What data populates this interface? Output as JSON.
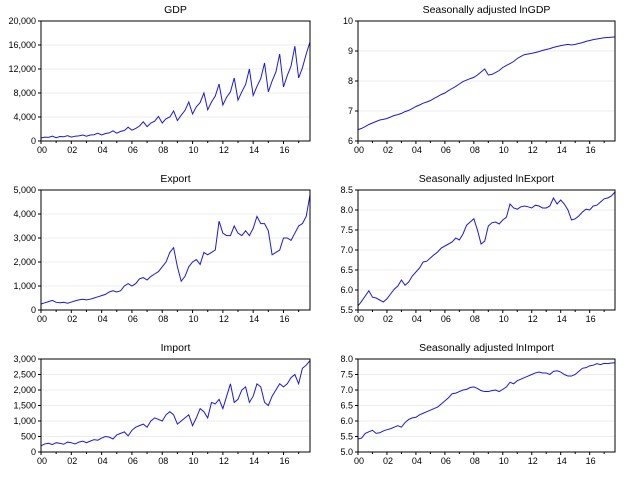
{
  "figure": {
    "line_color": "#1a1adb",
    "background": "#ffffff"
  },
  "chart_data": [
    {
      "type": "line",
      "title": "GDP",
      "x_tick_labels": [
        "00",
        "02",
        "04",
        "06",
        "08",
        "10",
        "12",
        "14",
        "16"
      ],
      "x_range": [
        2000,
        2017.75
      ],
      "ylim": [
        0,
        20000
      ],
      "y_ticks": [
        0,
        4000,
        8000,
        12000,
        16000,
        20000
      ],
      "y_tick_labels": [
        "0",
        "4,000",
        "8,000",
        "12,000",
        "16,000",
        "20,000"
      ],
      "grid": true,
      "x": [
        2000.0,
        2000.25,
        2000.5,
        2000.75,
        2001.0,
        2001.25,
        2001.5,
        2001.75,
        2002.0,
        2002.25,
        2002.5,
        2002.75,
        2003.0,
        2003.25,
        2003.5,
        2003.75,
        2004.0,
        2004.25,
        2004.5,
        2004.75,
        2005.0,
        2005.25,
        2005.5,
        2005.75,
        2006.0,
        2006.25,
        2006.5,
        2006.75,
        2007.0,
        2007.25,
        2007.5,
        2007.75,
        2008.0,
        2008.25,
        2008.5,
        2008.75,
        2009.0,
        2009.25,
        2009.5,
        2009.75,
        2010.0,
        2010.25,
        2010.5,
        2010.75,
        2011.0,
        2011.25,
        2011.5,
        2011.75,
        2012.0,
        2012.25,
        2012.5,
        2012.75,
        2013.0,
        2013.25,
        2013.5,
        2013.75,
        2014.0,
        2014.25,
        2014.5,
        2014.75,
        2015.0,
        2015.25,
        2015.5,
        2015.75,
        2016.0,
        2016.25,
        2016.5,
        2016.75,
        2017.0,
        2017.25,
        2017.5,
        2017.75
      ],
      "values": [
        500,
        650,
        600,
        800,
        550,
        750,
        700,
        900,
        650,
        800,
        850,
        1000,
        800,
        1000,
        1050,
        1300,
        1000,
        1250,
        1350,
        1700,
        1300,
        1600,
        1750,
        2300,
        1800,
        2100,
        2500,
        3200,
        2400,
        3000,
        3300,
        4100,
        3000,
        3700,
        4000,
        5000,
        3400,
        4300,
        5100,
        6500,
        4500,
        5700,
        6400,
        8000,
        5200,
        6500,
        7500,
        9500,
        6000,
        7300,
        8200,
        10500,
        6800,
        8200,
        9400,
        12000,
        7600,
        9100,
        10400,
        13000,
        8200,
        10000,
        11500,
        14500,
        9000,
        10900,
        12500,
        15800,
        10500,
        12200,
        14500,
        16500
      ],
      "line_color": "#1a1adb"
    },
    {
      "type": "line",
      "title": "Seasonally adjusted lnGDP",
      "x_tick_labels": [
        "00",
        "02",
        "04",
        "06",
        "08",
        "10",
        "12",
        "14",
        "16"
      ],
      "x_range": [
        2000,
        2017.75
      ],
      "ylim": [
        6,
        10
      ],
      "y_ticks": [
        6,
        7,
        8,
        9,
        10
      ],
      "y_tick_labels": [
        "6",
        "7",
        "8",
        "9",
        "10"
      ],
      "grid": true,
      "x": [
        2000.0,
        2000.25,
        2000.5,
        2000.75,
        2001.0,
        2001.25,
        2001.5,
        2001.75,
        2002.0,
        2002.25,
        2002.5,
        2002.75,
        2003.0,
        2003.25,
        2003.5,
        2003.75,
        2004.0,
        2004.25,
        2004.5,
        2004.75,
        2005.0,
        2005.25,
        2005.5,
        2005.75,
        2006.0,
        2006.25,
        2006.5,
        2006.75,
        2007.0,
        2007.25,
        2007.5,
        2007.75,
        2008.0,
        2008.25,
        2008.5,
        2008.75,
        2009.0,
        2009.25,
        2009.5,
        2009.75,
        2010.0,
        2010.25,
        2010.5,
        2010.75,
        2011.0,
        2011.25,
        2011.5,
        2011.75,
        2012.0,
        2012.25,
        2012.5,
        2012.75,
        2013.0,
        2013.25,
        2013.5,
        2013.75,
        2014.0,
        2014.25,
        2014.5,
        2014.75,
        2015.0,
        2015.25,
        2015.5,
        2015.75,
        2016.0,
        2016.25,
        2016.5,
        2016.75,
        2017.0,
        2017.25,
        2017.5,
        2017.75
      ],
      "values": [
        6.38,
        6.42,
        6.48,
        6.55,
        6.6,
        6.65,
        6.7,
        6.72,
        6.75,
        6.8,
        6.85,
        6.88,
        6.92,
        6.98,
        7.02,
        7.08,
        7.15,
        7.2,
        7.26,
        7.3,
        7.35,
        7.42,
        7.48,
        7.55,
        7.6,
        7.68,
        7.75,
        7.82,
        7.9,
        7.98,
        8.03,
        8.08,
        8.12,
        8.2,
        8.3,
        8.4,
        8.2,
        8.22,
        8.28,
        8.35,
        8.45,
        8.52,
        8.58,
        8.65,
        8.75,
        8.82,
        8.88,
        8.9,
        8.92,
        8.95,
        8.98,
        9.02,
        9.05,
        9.08,
        9.12,
        9.15,
        9.18,
        9.2,
        9.22,
        9.2,
        9.22,
        9.25,
        9.28,
        9.32,
        9.35,
        9.38,
        9.4,
        9.42,
        9.44,
        9.45,
        9.46,
        9.47
      ],
      "line_color": "#1a1adb"
    },
    {
      "type": "line",
      "title": "Export",
      "x_tick_labels": [
        "00",
        "02",
        "04",
        "06",
        "08",
        "10",
        "12",
        "14",
        "16"
      ],
      "x_range": [
        2000,
        2017.75
      ],
      "ylim": [
        0,
        5000
      ],
      "y_ticks": [
        0,
        1000,
        2000,
        3000,
        4000,
        5000
      ],
      "y_tick_labels": [
        "0",
        "1,000",
        "2,000",
        "3,000",
        "4,000",
        "5,000"
      ],
      "grid": true,
      "x": [
        2000.0,
        2000.25,
        2000.5,
        2000.75,
        2001.0,
        2001.25,
        2001.5,
        2001.75,
        2002.0,
        2002.25,
        2002.5,
        2002.75,
        2003.0,
        2003.25,
        2003.5,
        2003.75,
        2004.0,
        2004.25,
        2004.5,
        2004.75,
        2005.0,
        2005.25,
        2005.5,
        2005.75,
        2006.0,
        2006.25,
        2006.5,
        2006.75,
        2007.0,
        2007.25,
        2007.5,
        2007.75,
        2008.0,
        2008.25,
        2008.5,
        2008.75,
        2009.0,
        2009.25,
        2009.5,
        2009.75,
        2010.0,
        2010.25,
        2010.5,
        2010.75,
        2011.0,
        2011.25,
        2011.5,
        2011.75,
        2012.0,
        2012.25,
        2012.5,
        2012.75,
        2013.0,
        2013.25,
        2013.5,
        2013.75,
        2014.0,
        2014.25,
        2014.5,
        2014.75,
        2015.0,
        2015.25,
        2015.5,
        2015.75,
        2016.0,
        2016.25,
        2016.5,
        2016.75,
        2017.0,
        2017.25,
        2017.5,
        2017.75
      ],
      "values": [
        250,
        300,
        350,
        400,
        320,
        300,
        320,
        280,
        330,
        380,
        420,
        450,
        420,
        450,
        500,
        550,
        600,
        650,
        750,
        800,
        750,
        800,
        1000,
        1100,
        1000,
        1100,
        1300,
        1350,
        1250,
        1400,
        1500,
        1600,
        1800,
        2000,
        2400,
        2600,
        1800,
        1200,
        1400,
        1800,
        2000,
        2100,
        1900,
        2400,
        2300,
        2400,
        2500,
        3700,
        3200,
        3100,
        3100,
        3500,
        3200,
        3100,
        3300,
        3100,
        3400,
        3900,
        3600,
        3600,
        3300,
        2300,
        2400,
        2500,
        3000,
        3000,
        2900,
        3200,
        3500,
        3600,
        3900,
        4800
      ],
      "line_color": "#1a1adb"
    },
    {
      "type": "line",
      "title": "Seasonally adjusted lnExport",
      "x_tick_labels": [
        "00",
        "02",
        "04",
        "06",
        "08",
        "10",
        "12",
        "14",
        "16"
      ],
      "x_range": [
        2000,
        2017.75
      ],
      "ylim": [
        5.5,
        8.5
      ],
      "y_ticks": [
        5.5,
        6.0,
        6.5,
        7.0,
        7.5,
        8.0,
        8.5
      ],
      "y_tick_labels": [
        "5.5",
        "6.0",
        "6.5",
        "7.0",
        "7.5",
        "8.0",
        "8.5"
      ],
      "grid": true,
      "x": [
        2000.0,
        2000.25,
        2000.5,
        2000.75,
        2001.0,
        2001.25,
        2001.5,
        2001.75,
        2002.0,
        2002.25,
        2002.5,
        2002.75,
        2003.0,
        2003.25,
        2003.5,
        2003.75,
        2004.0,
        2004.25,
        2004.5,
        2004.75,
        2005.0,
        2005.25,
        2005.5,
        2005.75,
        2006.0,
        2006.25,
        2006.5,
        2006.75,
        2007.0,
        2007.25,
        2007.5,
        2007.75,
        2008.0,
        2008.25,
        2008.5,
        2008.75,
        2009.0,
        2009.25,
        2009.5,
        2009.75,
        2010.0,
        2010.25,
        2010.5,
        2010.75,
        2011.0,
        2011.25,
        2011.5,
        2011.75,
        2012.0,
        2012.25,
        2012.5,
        2012.75,
        2013.0,
        2013.25,
        2013.5,
        2013.75,
        2014.0,
        2014.25,
        2014.5,
        2014.75,
        2015.0,
        2015.25,
        2015.5,
        2015.75,
        2016.0,
        2016.25,
        2016.5,
        2016.75,
        2017.0,
        2017.25,
        2017.5,
        2017.75
      ],
      "values": [
        5.6,
        5.72,
        5.85,
        5.98,
        5.82,
        5.8,
        5.75,
        5.7,
        5.78,
        5.9,
        6.02,
        6.1,
        6.25,
        6.12,
        6.2,
        6.35,
        6.45,
        6.55,
        6.7,
        6.72,
        6.8,
        6.88,
        6.95,
        7.05,
        7.1,
        7.15,
        7.2,
        7.3,
        7.25,
        7.4,
        7.62,
        7.7,
        7.78,
        7.5,
        7.15,
        7.22,
        7.6,
        7.68,
        7.7,
        7.65,
        7.75,
        7.82,
        8.15,
        8.05,
        8.02,
        8.08,
        8.1,
        8.08,
        8.05,
        8.12,
        8.1,
        8.05,
        8.05,
        8.1,
        8.3,
        8.15,
        8.25,
        8.15,
        8.0,
        7.75,
        7.78,
        7.85,
        7.95,
        8.02,
        8.0,
        8.1,
        8.12,
        8.2,
        8.28,
        8.3,
        8.35,
        8.45
      ],
      "line_color": "#1a1adb"
    },
    {
      "type": "line",
      "title": "Import",
      "x_tick_labels": [
        "00",
        "02",
        "04",
        "06",
        "08",
        "10",
        "12",
        "14",
        "16"
      ],
      "x_range": [
        2000,
        2017.75
      ],
      "ylim": [
        0,
        3000
      ],
      "y_ticks": [
        0,
        500,
        1000,
        1500,
        2000,
        2500,
        3000
      ],
      "y_tick_labels": [
        "0",
        "500",
        "1,000",
        "1,500",
        "2,000",
        "2,500",
        "3,000"
      ],
      "grid": true,
      "x": [
        2000.0,
        2000.25,
        2000.5,
        2000.75,
        2001.0,
        2001.25,
        2001.5,
        2001.75,
        2002.0,
        2002.25,
        2002.5,
        2002.75,
        2003.0,
        2003.25,
        2003.5,
        2003.75,
        2004.0,
        2004.25,
        2004.5,
        2004.75,
        2005.0,
        2005.25,
        2005.5,
        2005.75,
        2006.0,
        2006.25,
        2006.5,
        2006.75,
        2007.0,
        2007.25,
        2007.5,
        2007.75,
        2008.0,
        2008.25,
        2008.5,
        2008.75,
        2009.0,
        2009.25,
        2009.5,
        2009.75,
        2010.0,
        2010.25,
        2010.5,
        2010.75,
        2011.0,
        2011.25,
        2011.5,
        2011.75,
        2012.0,
        2012.25,
        2012.5,
        2012.75,
        2013.0,
        2013.25,
        2013.5,
        2013.75,
        2014.0,
        2014.25,
        2014.5,
        2014.75,
        2015.0,
        2015.25,
        2015.5,
        2015.75,
        2016.0,
        2016.25,
        2016.5,
        2016.75,
        2017.0,
        2017.25,
        2017.5,
        2017.75
      ],
      "values": [
        200,
        260,
        280,
        240,
        300,
        280,
        250,
        320,
        300,
        260,
        320,
        350,
        300,
        350,
        400,
        380,
        450,
        500,
        480,
        420,
        550,
        600,
        650,
        520,
        700,
        800,
        850,
        900,
        800,
        1000,
        1100,
        1050,
        1000,
        1200,
        1300,
        1200,
        900,
        1000,
        1100,
        1200,
        850,
        1100,
        1400,
        1300,
        1100,
        1600,
        1550,
        1700,
        1400,
        1800,
        2200,
        1600,
        1700,
        2000,
        2100,
        1600,
        1800,
        2200,
        2100,
        1600,
        1500,
        1800,
        2000,
        2200,
        2100,
        2200,
        2400,
        2500,
        2200,
        2700,
        2800,
        2950
      ],
      "line_color": "#1a1adb"
    },
    {
      "type": "line",
      "title": "Seasonally adjusted lnImport",
      "x_tick_labels": [
        "00",
        "02",
        "04",
        "06",
        "08",
        "10",
        "12",
        "14",
        "16"
      ],
      "x_range": [
        2000,
        2017.75
      ],
      "ylim": [
        5.0,
        8.0
      ],
      "y_ticks": [
        5.0,
        5.5,
        6.0,
        6.5,
        7.0,
        7.5,
        8.0
      ],
      "y_tick_labels": [
        "5.0",
        "5.5",
        "6.0",
        "6.5",
        "7.0",
        "7.5",
        "8.0"
      ],
      "grid": true,
      "x": [
        2000.0,
        2000.25,
        2000.5,
        2000.75,
        2001.0,
        2001.25,
        2001.5,
        2001.75,
        2002.0,
        2002.25,
        2002.5,
        2002.75,
        2003.0,
        2003.25,
        2003.5,
        2003.75,
        2004.0,
        2004.25,
        2004.5,
        2004.75,
        2005.0,
        2005.25,
        2005.5,
        2005.75,
        2006.0,
        2006.25,
        2006.5,
        2006.75,
        2007.0,
        2007.25,
        2007.5,
        2007.75,
        2008.0,
        2008.25,
        2008.5,
        2008.75,
        2009.0,
        2009.25,
        2009.5,
        2009.75,
        2010.0,
        2010.25,
        2010.5,
        2010.75,
        2011.0,
        2011.25,
        2011.5,
        2011.75,
        2012.0,
        2012.25,
        2012.5,
        2012.75,
        2013.0,
        2013.25,
        2013.5,
        2013.75,
        2014.0,
        2014.25,
        2014.5,
        2014.75,
        2015.0,
        2015.25,
        2015.5,
        2015.75,
        2016.0,
        2016.25,
        2016.5,
        2016.75,
        2017.0,
        2017.25,
        2017.5,
        2017.75
      ],
      "values": [
        5.42,
        5.45,
        5.6,
        5.65,
        5.7,
        5.6,
        5.62,
        5.68,
        5.72,
        5.75,
        5.8,
        5.85,
        5.8,
        5.95,
        6.05,
        6.1,
        6.12,
        6.2,
        6.25,
        6.3,
        6.35,
        6.4,
        6.45,
        6.55,
        6.65,
        6.75,
        6.88,
        6.9,
        6.95,
        7.0,
        7.02,
        7.08,
        7.1,
        7.05,
        6.98,
        6.95,
        6.95,
        6.98,
        7.0,
        6.95,
        7.02,
        7.1,
        7.25,
        7.2,
        7.3,
        7.35,
        7.4,
        7.45,
        7.5,
        7.55,
        7.58,
        7.55,
        7.55,
        7.5,
        7.6,
        7.62,
        7.58,
        7.5,
        7.45,
        7.45,
        7.5,
        7.6,
        7.7,
        7.72,
        7.78,
        7.8,
        7.85,
        7.82,
        7.86,
        7.85,
        7.87,
        7.88
      ],
      "line_color": "#1a1adb"
    }
  ]
}
